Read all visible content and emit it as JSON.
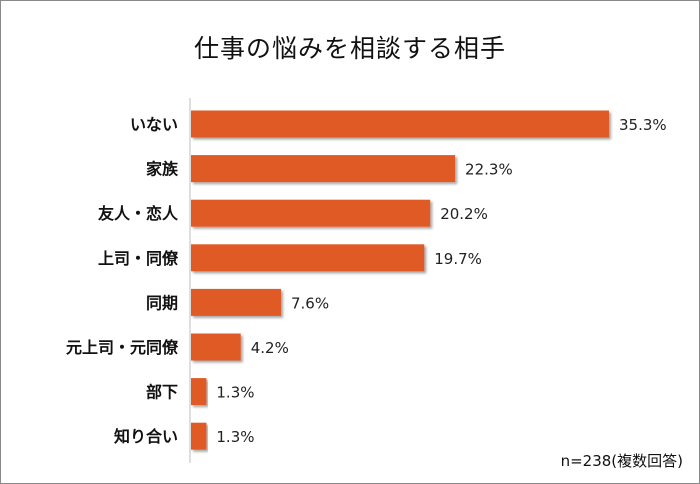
{
  "chart_data": {
    "type": "bar",
    "orientation": "horizontal",
    "title": "仕事の悩みを相談する相手",
    "categories": [
      "いない",
      "家族",
      "友人・恋人",
      "上司・同僚",
      "同期",
      "元上司・元同僚",
      "部下",
      "知り合い"
    ],
    "values": [
      35.3,
      22.3,
      20.2,
      19.7,
      7.6,
      4.2,
      1.3,
      1.3
    ],
    "value_labels": [
      "35.3%",
      "22.3%",
      "20.2%",
      "19.7%",
      "7.6%",
      "4.2%",
      "1.3%",
      "1.3%"
    ],
    "xlabel": "",
    "ylabel": "",
    "xlim": [
      0,
      35.3
    ],
    "grid": false,
    "legend": "none",
    "bar_color": "#e05a26",
    "note": "n=238(複数回答)"
  }
}
